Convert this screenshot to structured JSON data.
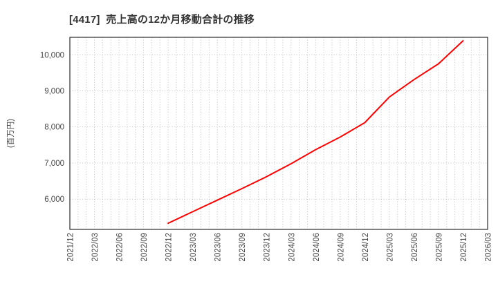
{
  "title": "[4417]  売上高の12か月移動合計の推移",
  "y_axis_label": "(百万円)",
  "colors": {
    "line": "#ff0000",
    "plot_border": "#2b2b2b",
    "grid": "#b5b5b5",
    "tick_text": "#444444",
    "title_text": "#333333",
    "background": "#ffffff"
  },
  "chart_data": {
    "type": "line",
    "title": "[4417]  売上高の12か月移動合計の推移",
    "xlabel": "",
    "ylabel": "(百万円)",
    "legend_position": "none",
    "grid": {
      "style": "dotted",
      "x_minor": "monthly",
      "y": "at-ticks"
    },
    "x_range": [
      "2021/12",
      "2026/03"
    ],
    "x_ticks": [
      "2021/12",
      "2022/03",
      "2022/06",
      "2022/09",
      "2022/12",
      "2023/03",
      "2023/06",
      "2023/09",
      "2023/12",
      "2024/03",
      "2024/06",
      "2024/09",
      "2024/12",
      "2025/03",
      "2025/06",
      "2025/09",
      "2025/12",
      "2026/03"
    ],
    "y_ticks": [
      6000,
      7000,
      8000,
      9000,
      10000
    ],
    "ylim": [
      5160,
      10485
    ],
    "series": [
      {
        "name": "売上高の12か月移動合計",
        "color": "#ff0000",
        "points": [
          [
            "2022/12",
            5330
          ],
          [
            "2023/03",
            5650
          ],
          [
            "2023/06",
            5970
          ],
          [
            "2023/09",
            6290
          ],
          [
            "2023/12",
            6620
          ],
          [
            "2024/03",
            6980
          ],
          [
            "2024/06",
            7370
          ],
          [
            "2024/09",
            7720
          ],
          [
            "2024/12",
            8120
          ],
          [
            "2025/03",
            8830
          ],
          [
            "2025/06",
            9310
          ],
          [
            "2025/09",
            9750
          ],
          [
            "2025/12",
            10390
          ]
        ]
      }
    ]
  }
}
